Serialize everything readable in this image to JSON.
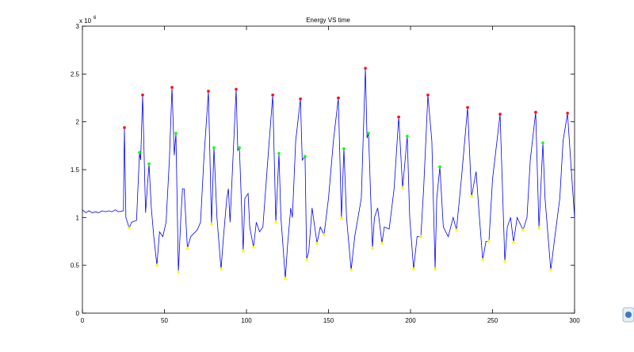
{
  "chart_data": {
    "type": "line",
    "title": "Energy VS time",
    "y_multiplier": {
      "base": "x 10",
      "exponent": "6"
    },
    "xlim": [
      0,
      300
    ],
    "xticks": [
      0,
      50,
      100,
      150,
      200,
      250,
      300
    ],
    "ylim": [
      0,
      3
    ],
    "yticks": [
      0,
      0.5,
      1,
      1.5,
      2,
      2.5,
      3
    ],
    "grid": false,
    "series": [
      {
        "color": "#0000ff",
        "marker": "none",
        "x": [
          0,
          2,
          4,
          6,
          8,
          10,
          12,
          14,
          16,
          18,
          20,
          22,
          25,
          25.6,
          26.5,
          28.5,
          30,
          33,
          34.8,
          35.5,
          36.7,
          38.5,
          39.5,
          40.6,
          42,
          43.5,
          45.4,
          47,
          49,
          51,
          53,
          54.6,
          56,
          57,
          58.5,
          60,
          61,
          62,
          64,
          66,
          70,
          72,
          74,
          76.8,
          78.7,
          80.2,
          82,
          84.5,
          86,
          88,
          89,
          90,
          92,
          93.7,
          94.7,
          95.7,
          98,
          99,
          101,
          102,
          104.3,
          106,
          108,
          110,
          113,
          116,
          117.9,
          119.8,
          121,
          123.7,
          125,
          127,
          128,
          130,
          132.9,
          134,
          135.7,
          136.7,
          138,
          140,
          143,
          145,
          147.3,
          150,
          153,
          156,
          157.9,
          159.4,
          161,
          163.8,
          166,
          168,
          170,
          172.5,
          173.5,
          174.4,
          176.8,
          178,
          180,
          182.6,
          184,
          187,
          190,
          192.8,
          195.2,
          198,
          199.5,
          201.9,
          204,
          206.3,
          208,
          210.6,
          213,
          215,
          216,
          217.9,
          220,
          223,
          226,
          228,
          231,
          234.8,
          237.2,
          240,
          242,
          244,
          246,
          247.8,
          250,
          254.6,
          257.5,
          259,
          261,
          262.8,
          265,
          268.6,
          271,
          273,
          276.3,
          278.3,
          280.7,
          282,
          285.5,
          288,
          291,
          293,
          295.7,
          298,
          300
        ],
        "values": [
          1.08,
          1.05,
          1.07,
          1.05,
          1.06,
          1.05,
          1.07,
          1.06,
          1.07,
          1.06,
          1.08,
          1.06,
          1.07,
          1.94,
          1.0,
          0.89,
          0.95,
          0.97,
          1.68,
          1.6,
          2.28,
          1.05,
          1.3,
          1.56,
          1.1,
          0.8,
          0.5,
          0.85,
          0.8,
          0.95,
          1.6,
          2.36,
          1.65,
          1.88,
          0.43,
          1.0,
          1.3,
          1.3,
          0.68,
          0.8,
          0.87,
          0.95,
          1.6,
          2.32,
          0.93,
          1.73,
          1.0,
          0.46,
          0.8,
          1.2,
          1.3,
          0.95,
          1.7,
          2.34,
          1.7,
          1.73,
          0.65,
          1.2,
          1.25,
          0.9,
          0.69,
          0.95,
          0.85,
          0.9,
          1.6,
          2.28,
          0.95,
          1.67,
          1.0,
          0.36,
          0.7,
          1.1,
          1.0,
          1.8,
          2.24,
          1.6,
          1.64,
          0.56,
          0.65,
          1.1,
          0.73,
          0.9,
          0.82,
          1.2,
          1.8,
          2.25,
          0.99,
          1.72,
          1.0,
          0.45,
          0.8,
          1.0,
          1.2,
          2.56,
          1.83,
          1.88,
          0.68,
          1.0,
          1.1,
          0.73,
          0.9,
          0.88,
          1.3,
          2.05,
          1.31,
          1.85,
          1.0,
          0.46,
          0.8,
          0.8,
          1.3,
          2.28,
          1.8,
          0.46,
          1.2,
          1.53,
          0.9,
          0.8,
          1.0,
          0.87,
          1.4,
          2.15,
          1.22,
          1.48,
          1.0,
          0.56,
          0.75,
          0.75,
          1.4,
          2.08,
          0.54,
          0.9,
          1.0,
          0.74,
          1.0,
          0.87,
          1.0,
          1.6,
          2.1,
          0.89,
          1.78,
          1.2,
          0.45,
          0.8,
          1.2,
          1.8,
          2.09,
          1.5,
          1.0
        ]
      },
      {
        "color": "#ff0000",
        "marker": "star",
        "x": [
          25.6,
          36.7,
          54.6,
          76.8,
          93.7,
          116,
          132.9,
          156,
          172.5,
          192.8,
          210.6,
          234.8,
          254.6,
          276.3,
          295.7
        ],
        "values": [
          1.94,
          2.28,
          2.36,
          2.32,
          2.34,
          2.28,
          2.24,
          2.25,
          2.56,
          2.05,
          2.28,
          2.15,
          2.08,
          2.1,
          2.09
        ]
      },
      {
        "color": "#00ff00",
        "marker": "star",
        "x": [
          34.8,
          40.6,
          57,
          80.2,
          95.7,
          119.8,
          135.7,
          159.4,
          174.4,
          198,
          217.9,
          280.7
        ],
        "values": [
          1.68,
          1.56,
          1.88,
          1.73,
          1.73,
          1.67,
          1.64,
          1.72,
          1.88,
          1.85,
          1.53,
          1.78
        ]
      },
      {
        "color": "#ffff00",
        "marker": "star",
        "x": [
          28.5,
          45.4,
          58.5,
          64,
          78.7,
          84.5,
          98,
          104.3,
          117.9,
          123.7,
          136.7,
          143,
          147.3,
          157.9,
          163.8,
          176.8,
          182.6,
          195.2,
          201.9,
          206.3,
          215,
          228,
          237.2,
          244,
          247.8,
          257.5,
          262.8,
          268.6,
          278.3,
          285.5
        ],
        "values": [
          0.89,
          0.5,
          0.43,
          0.68,
          0.93,
          0.46,
          0.65,
          0.69,
          0.95,
          0.36,
          0.56,
          0.73,
          0.82,
          0.99,
          0.45,
          0.68,
          0.73,
          1.31,
          0.46,
          0.8,
          0.46,
          0.87,
          1.22,
          0.56,
          0.75,
          0.54,
          0.74,
          0.87,
          0.89,
          0.45
        ]
      }
    ]
  }
}
